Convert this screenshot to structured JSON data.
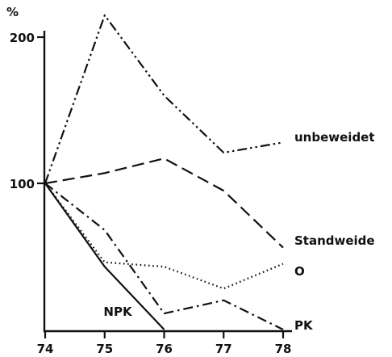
{
  "chart_data": {
    "type": "line",
    "ylabel": "%",
    "x": [
      74,
      75,
      76,
      77,
      78
    ],
    "xlim": [
      74,
      78
    ],
    "ylim": [
      0,
      210
    ],
    "yticks": [
      100,
      200
    ],
    "xticks": [
      "74",
      "75",
      "76",
      "77",
      "78"
    ],
    "grid": false,
    "series": [
      {
        "name": "unbeweidet",
        "style": "dash-dot-dot",
        "x": [
          74,
          75,
          76,
          77,
          78
        ],
        "values": [
          100,
          215,
          160,
          121,
          128
        ]
      },
      {
        "name": "Standweide",
        "style": "long-dash",
        "x": [
          74,
          75,
          76,
          77,
          78
        ],
        "values": [
          100,
          107,
          117,
          95,
          56
        ]
      },
      {
        "name": "O",
        "style": "dotted",
        "x": [
          74,
          75,
          76,
          77,
          78
        ],
        "values": [
          100,
          46,
          43,
          28,
          45
        ]
      },
      {
        "name": "PK",
        "style": "dash-dot",
        "x": [
          74,
          75,
          76,
          77,
          78
        ],
        "values": [
          100,
          68,
          11,
          20,
          0
        ]
      },
      {
        "name": "NPK",
        "style": "solid",
        "x": [
          74,
          75,
          76
        ],
        "values": [
          100,
          43,
          0
        ]
      }
    ]
  }
}
